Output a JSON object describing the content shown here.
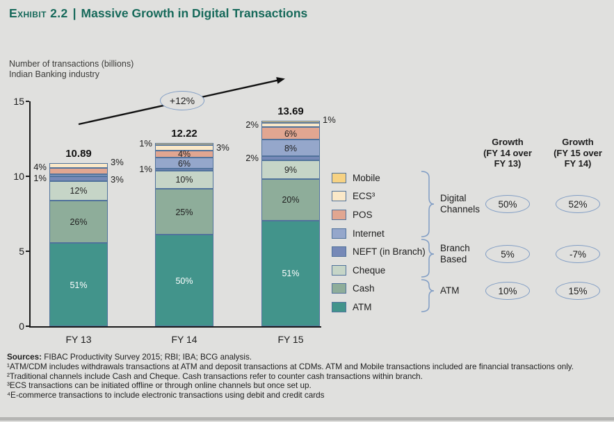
{
  "title": {
    "prefix": "Exhibit 2.2",
    "separator": "|",
    "main": "Massive Growth in Digital Transactions"
  },
  "subtitle": {
    "line1": "Number of transactions (billions)",
    "line2": "Indian Banking industry"
  },
  "annotation": {
    "growth_label": "+12%"
  },
  "colors": {
    "background": "#e0e0de",
    "title_green": "#16695a",
    "segment_border": "#50729b",
    "annotation_blue": "#7f9cc4",
    "arrow_black": "#111111"
  },
  "chart_data": {
    "type": "bar",
    "stacked": true,
    "title": "Massive Growth in Digital Transactions",
    "ylabel": "Number of transactions (billions)",
    "context": "Indian Banking industry",
    "ylim": [
      0,
      15
    ],
    "yticks": [
      0,
      5,
      10,
      15
    ],
    "grid": false,
    "categories": [
      "FY 13",
      "FY 14",
      "FY 15"
    ],
    "totals": [
      10.89,
      12.22,
      13.69
    ],
    "totals_labels": [
      "10.89",
      "12.22",
      "13.69"
    ],
    "overall_growth_annotation": "+12%",
    "series_bottom_to_top": [
      {
        "name": "ATM",
        "color": "#42948b",
        "pct": [
          51,
          50,
          51
        ],
        "labels": [
          {
            "text": "51%",
            "pos": "inside",
            "white": true
          },
          {
            "text": "50%",
            "pos": "inside",
            "white": true
          },
          {
            "text": "51%",
            "pos": "inside",
            "white": true
          }
        ]
      },
      {
        "name": "Cash",
        "color": "#8ead9a",
        "pct": [
          26,
          25,
          20
        ],
        "labels": [
          {
            "text": "26%",
            "pos": "inside"
          },
          {
            "text": "25%",
            "pos": "inside"
          },
          {
            "text": "20%",
            "pos": "inside"
          }
        ]
      },
      {
        "name": "Cheque",
        "color": "#c6d5c7",
        "pct": [
          12,
          10,
          9
        ],
        "labels": [
          {
            "text": "12%",
            "pos": "inside"
          },
          {
            "text": "10%",
            "pos": "inside"
          },
          {
            "text": "9%",
            "pos": "inside"
          }
        ]
      },
      {
        "name": "NEFT (in Branch)",
        "color": "#7689b7",
        "pct": [
          3,
          1,
          2
        ],
        "labels": [
          {
            "text": "3%",
            "pos": "right",
            "dy": 2
          },
          {
            "text": "1%",
            "pos": "left"
          },
          {
            "text": "2%",
            "pos": "left"
          }
        ]
      },
      {
        "name": "Internet",
        "color": "#95a7cb",
        "pct": [
          1,
          6,
          8
        ],
        "labels": [
          {
            "text": "1%",
            "pos": "left",
            "dy": 5
          },
          {
            "text": "6%",
            "pos": "inside"
          },
          {
            "text": "8%",
            "pos": "inside"
          }
        ]
      },
      {
        "name": "POS",
        "color": "#e1a691",
        "pct": [
          4,
          4,
          6
        ],
        "labels": [
          {
            "text": "4%",
            "pos": "left",
            "dy": -6
          },
          {
            "text": "4%",
            "pos": "inside"
          },
          {
            "text": "6%",
            "pos": "inside"
          }
        ]
      },
      {
        "name": "ECS³",
        "color": "#fae8c8",
        "pct": [
          3,
          3,
          2
        ],
        "labels": [
          {
            "text": "3%",
            "pos": "right",
            "dy": -4
          },
          {
            "text": "3%",
            "pos": "right"
          },
          {
            "text": "2%",
            "pos": "left"
          }
        ]
      },
      {
        "name": "Mobile",
        "color": "#f6d283",
        "pct": [
          0,
          1,
          1
        ],
        "labels": [
          null,
          {
            "text": "1%",
            "pos": "left"
          },
          {
            "text": "1%",
            "pos": "right",
            "dy": -3
          }
        ]
      }
    ]
  },
  "legend": {
    "items": [
      {
        "label": "Mobile",
        "color": "#f6d283"
      },
      {
        "label": "ECS³",
        "color": "#fae8c8"
      },
      {
        "label": "POS",
        "color": "#e1a691"
      },
      {
        "label": "Internet",
        "color": "#95a7cb"
      },
      {
        "label": "NEFT (in Branch)",
        "color": "#7689b7"
      },
      {
        "label": "Cheque",
        "color": "#c6d5c7"
      },
      {
        "label": "Cash",
        "color": "#8ead9a"
      },
      {
        "label": "ATM",
        "color": "#42948b"
      }
    ]
  },
  "groups": [
    {
      "label": "Digital Channels",
      "members": [
        "Mobile",
        "ECS",
        "POS",
        "Internet"
      ]
    },
    {
      "label": "Branch Based",
      "members": [
        "NEFT (in Branch)",
        "Cheque"
      ]
    },
    {
      "label": "ATM",
      "members": [
        "Cash",
        "ATM"
      ]
    }
  ],
  "growth_table": {
    "headers": [
      {
        "l1": "Growth",
        "l2": "(FY 14 over",
        "l3": "FY 13)"
      },
      {
        "l1": "Growth",
        "l2": "(FY 15 over",
        "l3": "FY 14)"
      }
    ],
    "rows": [
      {
        "group": "Digital Channels",
        "growth_fy14_over_fy13": "50%",
        "growth_fy15_over_fy14": "52%"
      },
      {
        "group": "Branch Based",
        "growth_fy14_over_fy13": "5%",
        "growth_fy15_over_fy14": "-7%"
      },
      {
        "group": "ATM",
        "growth_fy14_over_fy13": "10%",
        "growth_fy15_over_fy14": "15%"
      }
    ]
  },
  "sources": {
    "label": "Sources:",
    "text": " FIBAC Productivity Survey 2015; RBI; IBA; BCG analysis."
  },
  "footnotes": [
    "¹ATM/CDM includes withdrawals transactions at ATM and deposit transactions at CDMs. ATM and Mobile transactions included are financial transactions only.",
    "²Traditional channels include Cash and Cheque. Cash transactions refer to counter cash transactions within branch.",
    "³ECS transactions can be initiated offline or through online channels but once set up.",
    "⁴E-commerce transactions to include electronic transactions using debit and credit cards"
  ]
}
